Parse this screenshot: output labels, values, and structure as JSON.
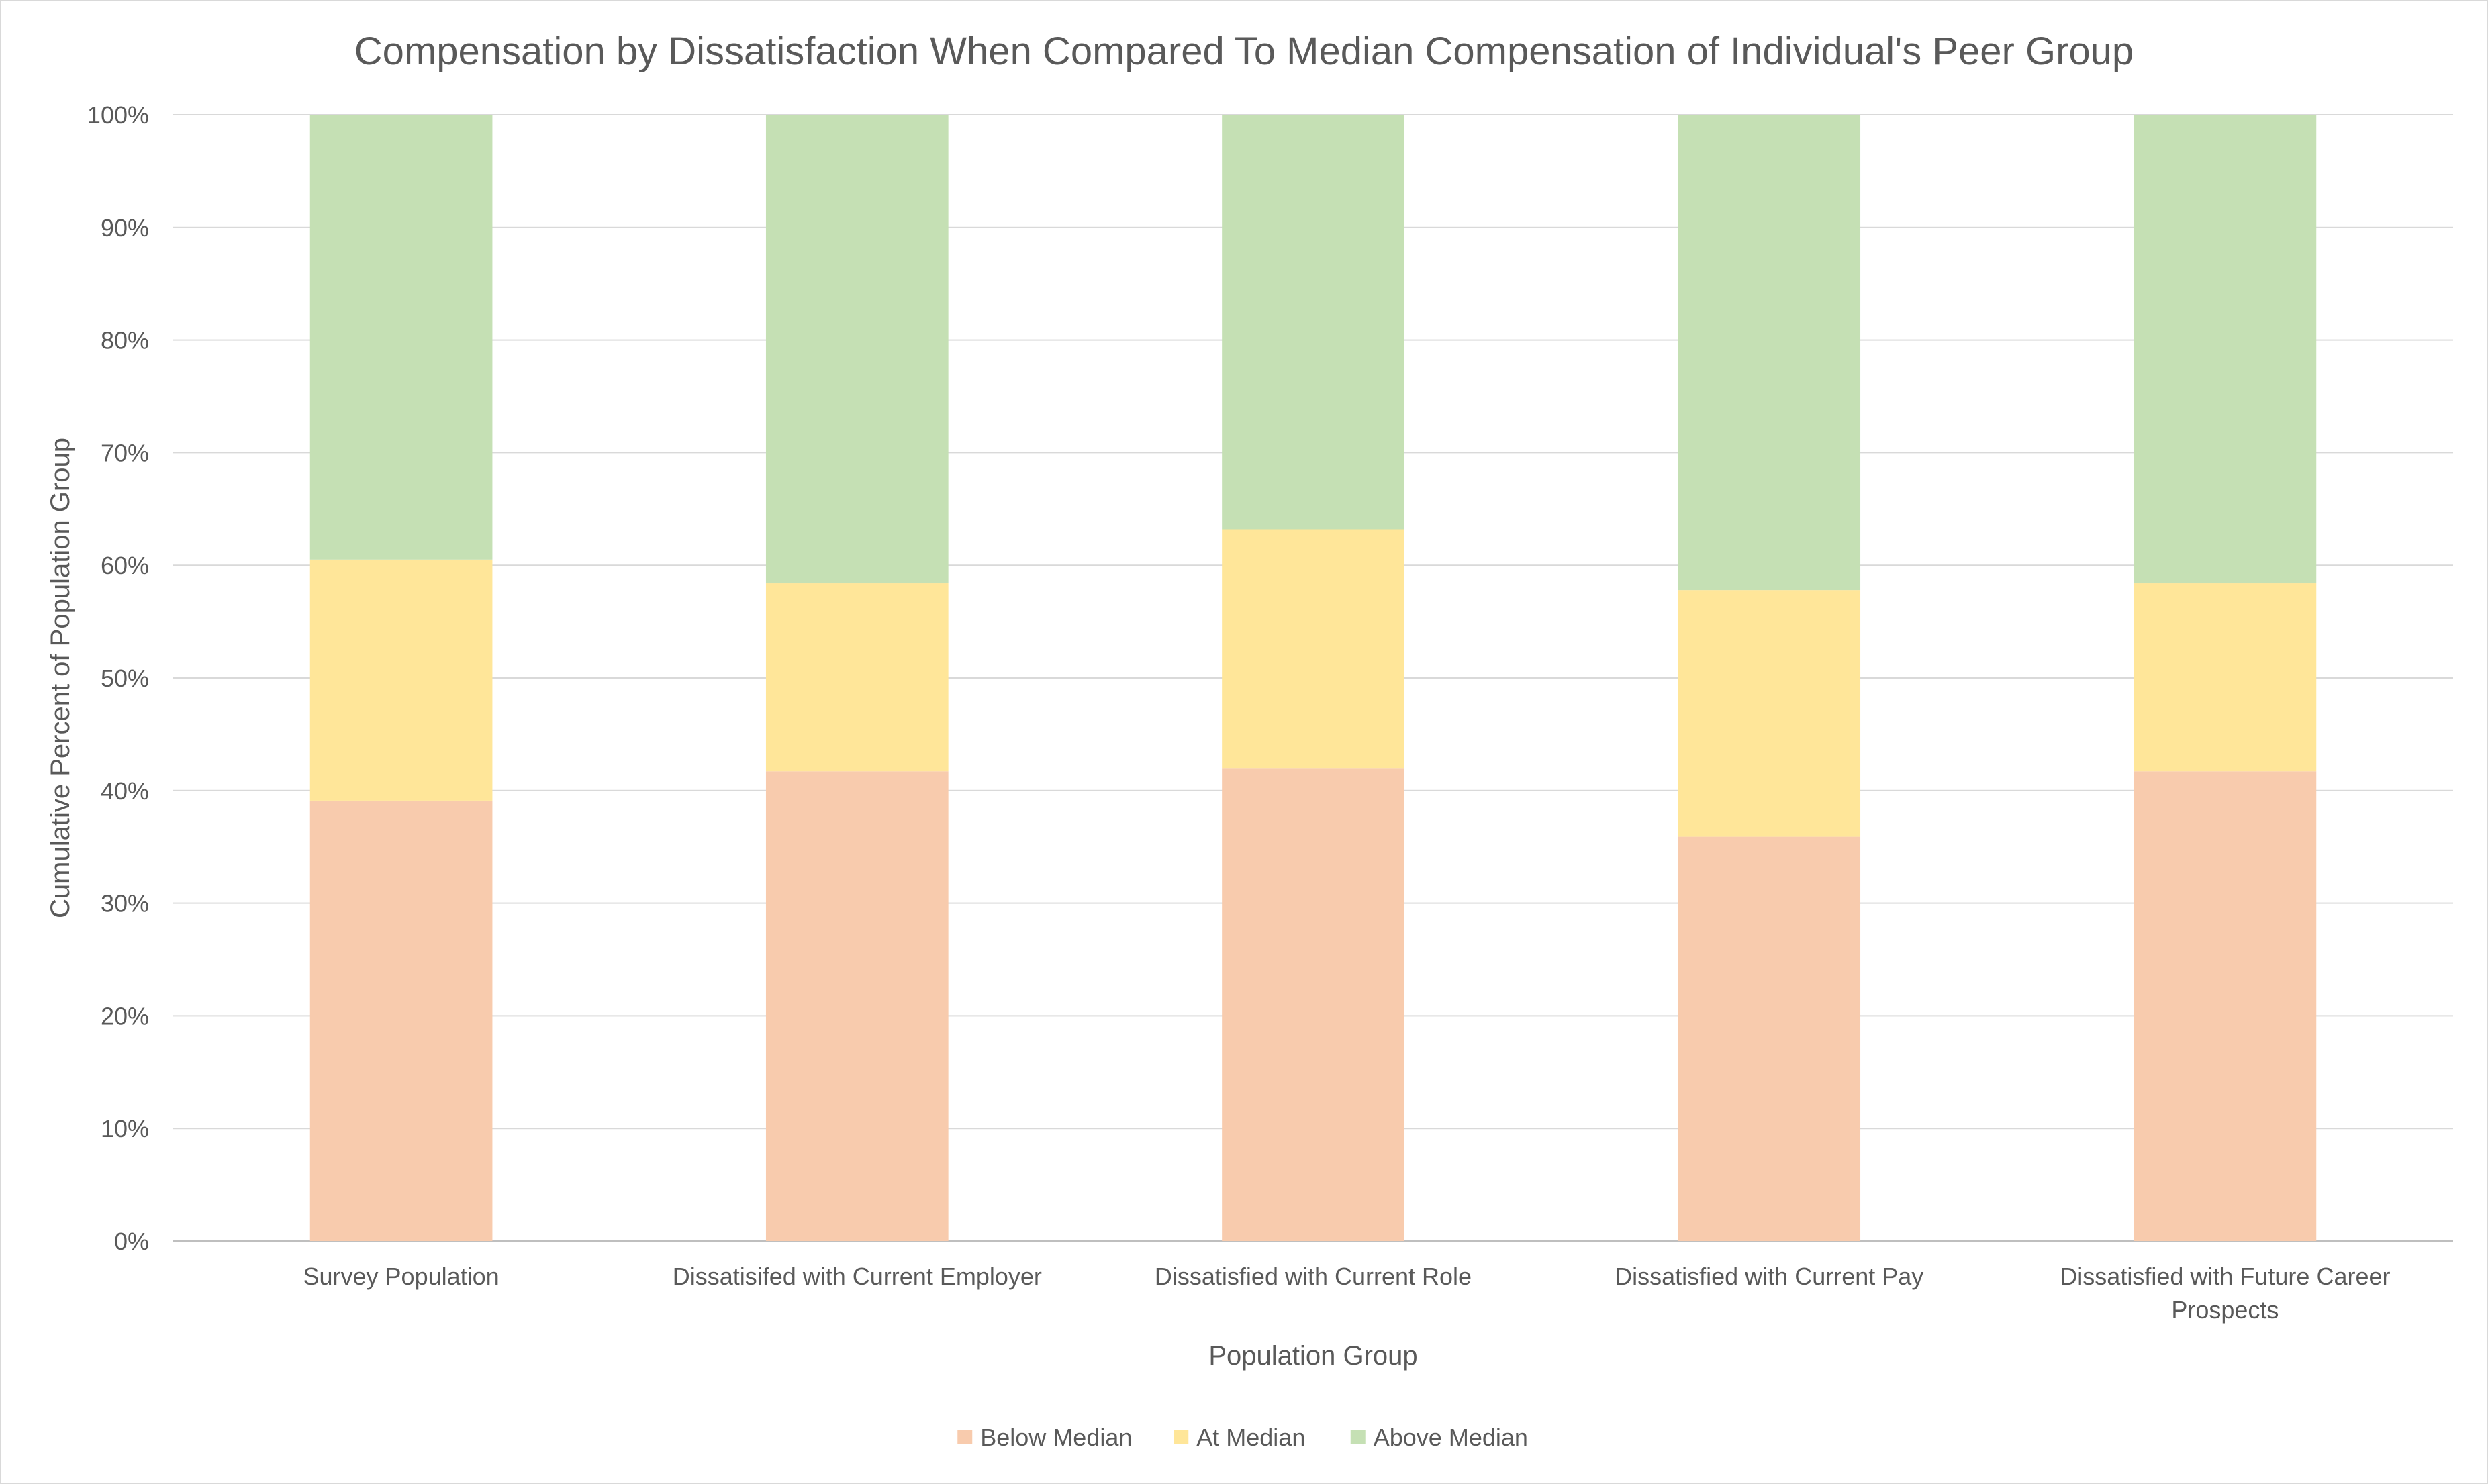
{
  "chart_data": {
    "type": "bar",
    "stacked": true,
    "title": "Compensation by Dissatisfaction When Compared To Median Compensation of Individual's Peer Group",
    "xlabel": "Population Group",
    "ylabel": "Cumulative Percent of Population Group",
    "ylim": [
      0,
      100
    ],
    "yticks": [
      "0%",
      "10%",
      "20%",
      "30%",
      "40%",
      "50%",
      "60%",
      "70%",
      "80%",
      "90%",
      "100%"
    ],
    "y_unit": "%",
    "grid": true,
    "legend_position": "bottom",
    "categories": [
      "Survey Population",
      "Dissatisifed with Current Employer",
      "Dissatisfied with Current Role",
      "Dissatisfied with Current Pay",
      "Dissatisfied with Future Career Prospects"
    ],
    "category_lines": [
      [
        "Survey Population"
      ],
      [
        "Dissatisifed with Current Employer"
      ],
      [
        "Dissatisfied with Current Role"
      ],
      [
        "Dissatisfied with Current Pay"
      ],
      [
        "Dissatisfied with Future Career",
        "Prospects"
      ]
    ],
    "series": [
      {
        "name": "Below Median",
        "color": "#F8CBAD",
        "values": [
          39.1,
          41.7,
          42.0,
          35.9,
          41.7
        ]
      },
      {
        "name": "At Median",
        "color": "#FFE699",
        "values": [
          21.4,
          16.7,
          21.2,
          21.9,
          16.7
        ]
      },
      {
        "name": "Above Median",
        "color": "#C5E0B4",
        "values": [
          39.5,
          41.6,
          36.8,
          42.2,
          41.6
        ]
      }
    ]
  }
}
